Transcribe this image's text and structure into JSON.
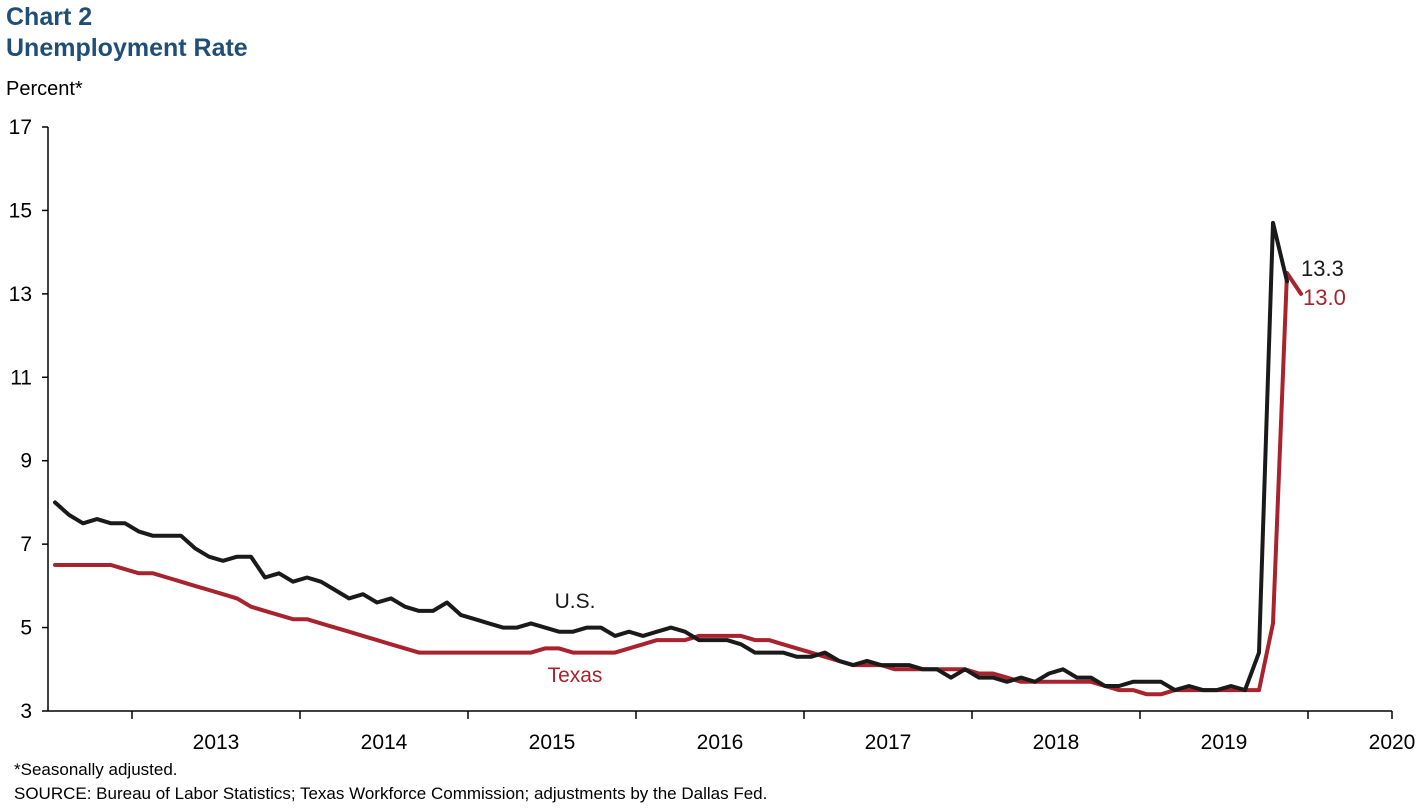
{
  "title_line1": "Chart 2",
  "title_line2": "Unemployment Rate",
  "ylabel": "Percent*",
  "footnote": "*Seasonally adjusted.",
  "source": "SOURCE:  Bureau of Labor Statistics; Texas Workforce Commission;  adjustments  by the Dallas Fed.",
  "colors": {
    "us": "#1a1a1a",
    "texas": "#a8232d",
    "title": "#1f4e79"
  },
  "chart_data": {
    "type": "line",
    "x_start": "2012-07",
    "x_step": "month",
    "xtick_labels": [
      "2013",
      "2014",
      "2015",
      "2016",
      "2017",
      "2018",
      "2019",
      "2020"
    ],
    "yticks": [
      3,
      5,
      7,
      9,
      11,
      13,
      15,
      17
    ],
    "ylim": [
      3,
      17
    ],
    "grid": false,
    "series": [
      {
        "name": "U.S.",
        "end_label": "13.3",
        "values": [
          8.0,
          7.7,
          7.5,
          7.6,
          7.5,
          7.5,
          7.3,
          7.2,
          7.2,
          7.2,
          6.9,
          6.7,
          6.6,
          6.7,
          6.7,
          6.2,
          6.3,
          6.1,
          6.2,
          6.1,
          5.9,
          5.7,
          5.8,
          5.6,
          5.7,
          5.5,
          5.4,
          5.4,
          5.6,
          5.3,
          5.2,
          5.1,
          5.0,
          5.0,
          5.1,
          5.0,
          4.9,
          4.9,
          5.0,
          5.0,
          4.8,
          4.9,
          4.8,
          4.9,
          5.0,
          4.9,
          4.7,
          4.7,
          4.7,
          4.6,
          4.4,
          4.4,
          4.4,
          4.3,
          4.3,
          4.4,
          4.2,
          4.1,
          4.2,
          4.1,
          4.1,
          4.1,
          4.0,
          4.0,
          3.8,
          4.0,
          3.8,
          3.8,
          3.7,
          3.8,
          3.7,
          3.9,
          4.0,
          3.8,
          3.8,
          3.6,
          3.6,
          3.7,
          3.7,
          3.7,
          3.5,
          3.6,
          3.5,
          3.5,
          3.6,
          3.5,
          4.4,
          14.7,
          13.3
        ]
      },
      {
        "name": "Texas",
        "end_label": "13.0",
        "values": [
          6.5,
          6.5,
          6.5,
          6.5,
          6.5,
          6.4,
          6.3,
          6.3,
          6.2,
          6.1,
          6.0,
          5.9,
          5.8,
          5.7,
          5.5,
          5.4,
          5.3,
          5.2,
          5.2,
          5.1,
          5.0,
          4.9,
          4.8,
          4.7,
          4.6,
          4.5,
          4.4,
          4.4,
          4.4,
          4.4,
          4.4,
          4.4,
          4.4,
          4.4,
          4.4,
          4.5,
          4.5,
          4.4,
          4.4,
          4.4,
          4.4,
          4.5,
          4.6,
          4.7,
          4.7,
          4.7,
          4.8,
          4.8,
          4.8,
          4.8,
          4.7,
          4.7,
          4.6,
          4.5,
          4.4,
          4.3,
          4.2,
          4.1,
          4.1,
          4.1,
          4.0,
          4.0,
          4.0,
          4.0,
          4.0,
          4.0,
          3.9,
          3.9,
          3.8,
          3.7,
          3.7,
          3.7,
          3.7,
          3.7,
          3.7,
          3.6,
          3.5,
          3.5,
          3.4,
          3.4,
          3.5,
          3.5,
          3.5,
          3.5,
          3.5,
          3.5,
          3.5,
          5.1,
          13.5,
          13.0
        ]
      }
    ]
  }
}
